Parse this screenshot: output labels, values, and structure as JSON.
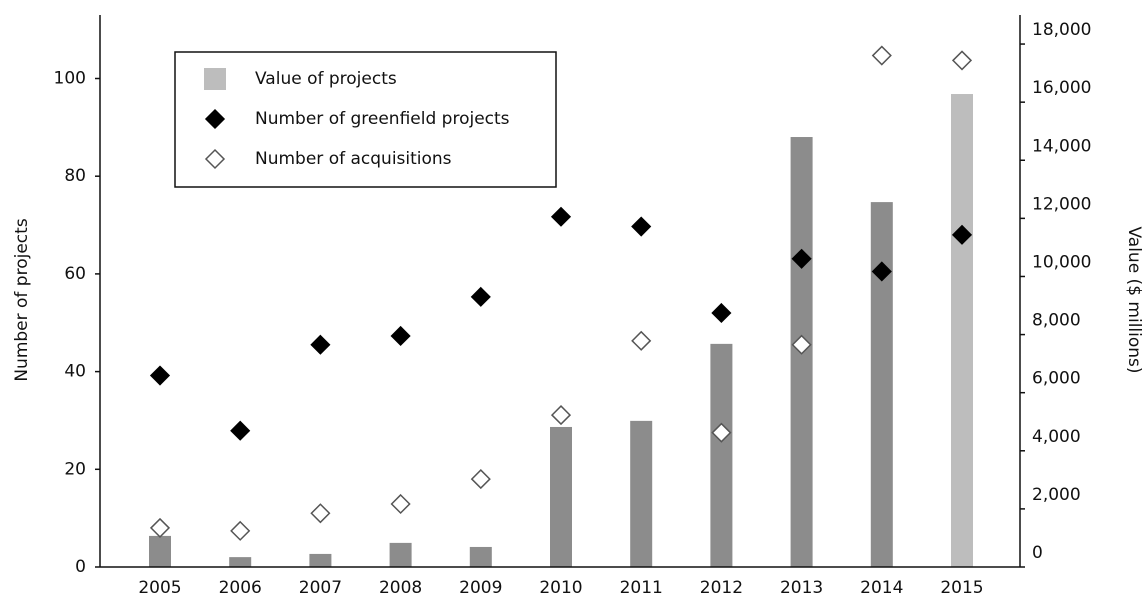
{
  "chart_data": {
    "type": "bar",
    "categories": [
      "2005",
      "2006",
      "2007",
      "2008",
      "2009",
      "2010",
      "2011",
      "2012",
      "2013",
      "2014",
      "2015"
    ],
    "ylabel": "Number of projects",
    "y2label": "Value ($ millions)",
    "ylim": [
      0,
      113
    ],
    "yticks": [
      0,
      20,
      40,
      60,
      80,
      100
    ],
    "y2lim": [
      0,
      19000
    ],
    "y2ticks": [
      0,
      {
        "value": 2000,
        "label": "2,000"
      },
      {
        "value": 4000,
        "label": "4,000"
      },
      {
        "value": 6000,
        "label": "6,000"
      },
      {
        "value": 8000,
        "label": "8,000"
      },
      {
        "value": 10000,
        "label": "10,000"
      },
      {
        "value": 12000,
        "label": "12,000"
      },
      {
        "value": 14000,
        "label": "14,000"
      },
      {
        "value": 16000,
        "label": "16,000"
      },
      {
        "value": 18000,
        "label": "18,000"
      }
    ],
    "legend": "upper left",
    "series": [
      {
        "name": "Value of projects",
        "type": "bar",
        "axis": "y2",
        "color": "#bdbdbd",
        "colors": [
          "#8c8c8c",
          "#8c8c8c",
          "#8c8c8c",
          "#8c8c8c",
          "#8c8c8c",
          "#8c8c8c",
          "#8c8c8c",
          "#8c8c8c",
          "#8c8c8c",
          "#8c8c8c",
          "#bdbdbd"
        ],
        "values": [
          1070,
          340,
          450,
          830,
          690,
          4820,
          5030,
          7680,
          14800,
          12560,
          16280
        ]
      },
      {
        "name": " Number of greenfield projects",
        "type": "scatter",
        "marker": "filled",
        "color": "#000000",
        "values": [
          39.2,
          27.9,
          45.5,
          47.3,
          55.3,
          71.7,
          69.7,
          52,
          63.1,
          60.5,
          68
        ]
      },
      {
        "name": "Number of acquisitions",
        "type": "scatter",
        "marker": "hollow",
        "color": "#555555",
        "values": [
          8,
          7.4,
          11,
          12.9,
          18,
          31.1,
          46.3,
          27.5,
          45.5,
          104.7,
          103.7
        ]
      }
    ]
  }
}
